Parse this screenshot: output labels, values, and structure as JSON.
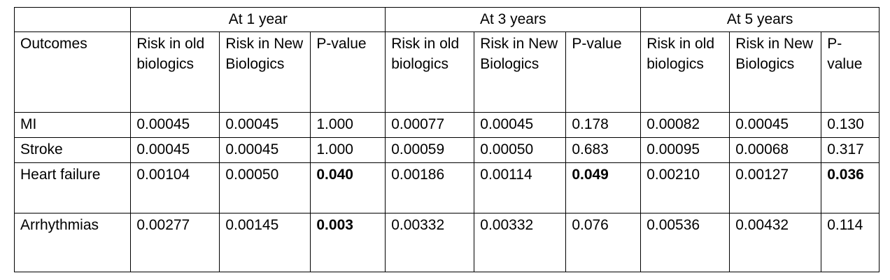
{
  "table": {
    "groups": [
      "At 1 year",
      "At 3 years",
      "At 5 years"
    ],
    "outcome_header": "Outcomes",
    "col_old": "Risk in old biologics",
    "col_new": "Risk in New Biologics",
    "col_p": "P-value",
    "rows": [
      {
        "outcome": "MI",
        "values": [
          "0.00045",
          "0.00045",
          "1.000",
          "0.00077",
          "0.00045",
          "0.178",
          "0.00082",
          "0.00045",
          "0.130"
        ],
        "bold": [
          false,
          false,
          false,
          false,
          false,
          false,
          false,
          false,
          false
        ]
      },
      {
        "outcome": "Stroke",
        "values": [
          "0.00045",
          "0.00045",
          "1.000",
          "0.00059",
          "0.00050",
          "0.683",
          "0.00095",
          "0.00068",
          "0.317"
        ],
        "bold": [
          false,
          false,
          false,
          false,
          false,
          false,
          false,
          false,
          false
        ]
      },
      {
        "outcome": "Heart failure",
        "values": [
          "0.00104",
          "0.00050",
          "0.040",
          "0.00186",
          "0.00114",
          "0.049",
          "0.00210",
          "0.00127",
          "0.036"
        ],
        "bold": [
          false,
          false,
          true,
          false,
          false,
          true,
          false,
          false,
          true
        ]
      },
      {
        "outcome": "Arrhythmias",
        "values": [
          "0.00277",
          "0.00145",
          "0.003",
          "0.00332",
          "0.00332",
          "0.076",
          "0.00536",
          "0.00432",
          "0.114"
        ],
        "bold": [
          false,
          false,
          true,
          false,
          false,
          false,
          false,
          false,
          false
        ]
      }
    ]
  }
}
